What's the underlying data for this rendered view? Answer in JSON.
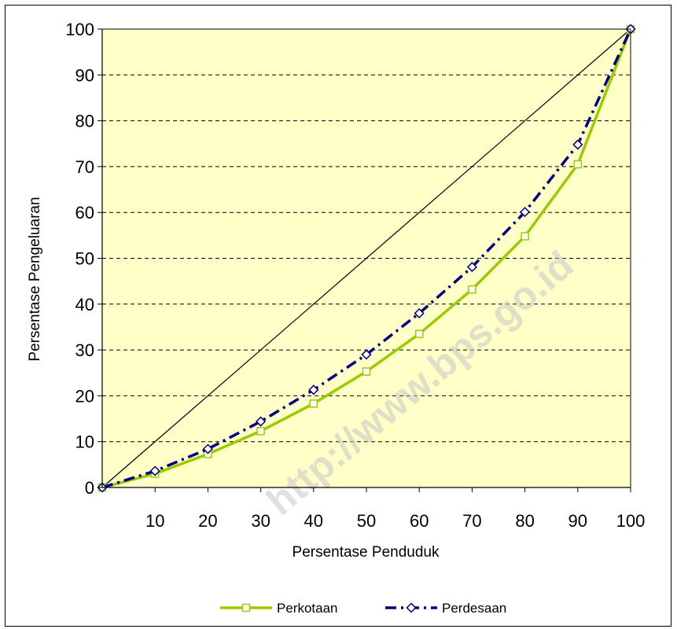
{
  "watermark": "http://www.bps.go.id",
  "chart_data": {
    "type": "line",
    "xlabel": "Persentase Penduduk",
    "ylabel": "Persentase Pengeluaran",
    "xlim": [
      0,
      100
    ],
    "ylim": [
      0,
      100
    ],
    "x_ticks": [
      10,
      20,
      30,
      40,
      50,
      60,
      70,
      80,
      90,
      100
    ],
    "y_ticks": [
      0,
      10,
      20,
      30,
      40,
      50,
      60,
      70,
      80,
      90,
      100
    ],
    "grid": "horizontal dashed",
    "plot_background": "#ffffc8",
    "equality_line": {
      "x": [
        0,
        100
      ],
      "y": [
        0,
        100
      ],
      "color": "#000000"
    },
    "legend_position": "bottom",
    "series": [
      {
        "name": "Perkotaan",
        "color": "#99cc00",
        "marker": "square",
        "line_style": "solid",
        "x": [
          0,
          10,
          20,
          30,
          40,
          50,
          60,
          70,
          80,
          90,
          100
        ],
        "y": [
          0,
          3.0,
          7.3,
          12.3,
          18.3,
          25.3,
          33.5,
          43.2,
          54.8,
          70.5,
          100
        ]
      },
      {
        "name": "Perdesaan",
        "color": "#000080",
        "marker": "diamond",
        "line_style": "dash-dot",
        "x": [
          0,
          10,
          20,
          30,
          40,
          50,
          60,
          70,
          80,
          90,
          100
        ],
        "y": [
          0,
          3.6,
          8.4,
          14.4,
          21.3,
          29.0,
          38.0,
          48.1,
          60.1,
          74.8,
          100
        ]
      }
    ]
  }
}
